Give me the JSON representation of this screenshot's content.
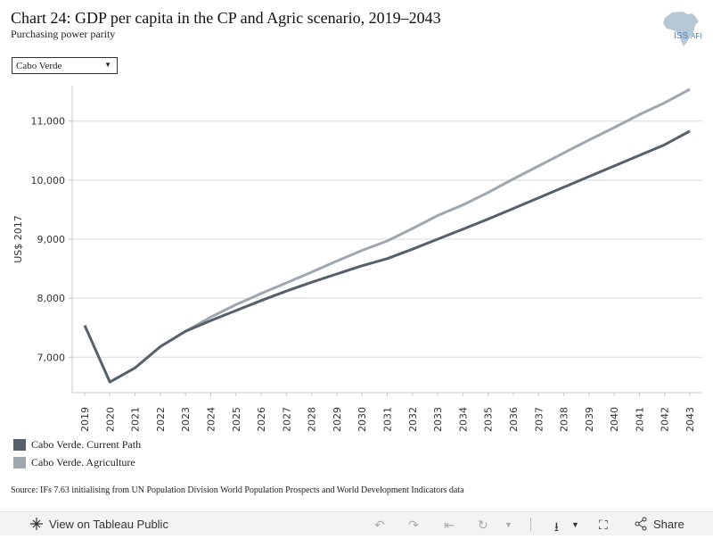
{
  "title": "Chart 24: GDP per capita in the CP and Agric scenario, 2019–2043",
  "subtitle": "Purchasing power parity",
  "logo_text": "ISS",
  "logo_suffix": "AFI",
  "country_select": {
    "value": "Cabo Verde",
    "arrow": "▼"
  },
  "legend": [
    {
      "label": "Cabo Verde. Current Path",
      "color": "#56606c"
    },
    {
      "label": "Cabo Verde. Agriculture",
      "color": "#9ea6b0"
    }
  ],
  "source": "Source: IFs 7.63 initialising from UN Population Division World Population Prospects and World Development Indicators data",
  "toolbar": {
    "view_label": "View on Tableau Public",
    "share_label": "Share"
  },
  "chart_data": {
    "type": "line",
    "ylabel": "US$ 2017",
    "xlabel": "",
    "ylim": [
      6400,
      11600
    ],
    "yticks": [
      7000,
      8000,
      9000,
      10000,
      11000
    ],
    "ytick_labels": [
      "7,000",
      "8,000",
      "9,000",
      "10,000",
      "11,000"
    ],
    "x": [
      2019,
      2020,
      2021,
      2022,
      2023,
      2024,
      2025,
      2026,
      2027,
      2028,
      2029,
      2030,
      2031,
      2032,
      2033,
      2034,
      2035,
      2036,
      2037,
      2038,
      2039,
      2040,
      2041,
      2042,
      2043
    ],
    "x_labels": [
      "2019",
      "2020",
      "2021",
      "2022",
      "2023",
      "2024",
      "2025",
      "2026",
      "2027",
      "2028",
      "2029",
      "2030",
      "2031",
      "2032",
      "2033",
      "2034",
      "2035",
      "2036",
      "2037",
      "2038",
      "2039",
      "2040",
      "2041",
      "2042",
      "2043"
    ],
    "grid": true,
    "legend_position": "bottom-left",
    "series": [
      {
        "name": "Cabo Verde. Current Path",
        "color": "#56606c",
        "values": [
          7540,
          6580,
          6820,
          7180,
          7440,
          7620,
          7790,
          7960,
          8120,
          8270,
          8410,
          8550,
          8670,
          8830,
          9000,
          9170,
          9340,
          9520,
          9700,
          9880,
          10060,
          10240,
          10420,
          10600,
          10830
        ]
      },
      {
        "name": "Cabo Verde. Agriculture",
        "color": "#9ea6b0",
        "values": [
          null,
          null,
          null,
          null,
          7440,
          7680,
          7890,
          8080,
          8260,
          8440,
          8630,
          8810,
          8970,
          9180,
          9400,
          9580,
          9790,
          10020,
          10240,
          10460,
          10680,
          10890,
          11110,
          11310,
          11540
        ]
      }
    ]
  }
}
